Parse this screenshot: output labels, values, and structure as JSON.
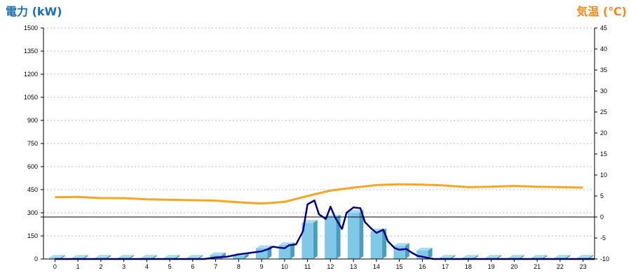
{
  "chart_data": {
    "type": "bar",
    "title": "",
    "y_left": {
      "label": "電力 (kW)",
      "min": 0,
      "max": 1500,
      "ticks": [
        0,
        150,
        300,
        450,
        600,
        750,
        900,
        1050,
        1200,
        1350,
        1500
      ]
    },
    "y_right": {
      "label": "気温 (℃)",
      "min": -10,
      "max": 45,
      "ticks": [
        -10,
        -5,
        0,
        5,
        10,
        15,
        20,
        25,
        30,
        35,
        40,
        45
      ]
    },
    "x": [
      0,
      1,
      2,
      3,
      4,
      5,
      6,
      7,
      8,
      9,
      10,
      11,
      12,
      13,
      14,
      15,
      16,
      17,
      18,
      19,
      20,
      21,
      22,
      23
    ],
    "grid": true,
    "colors": {
      "bars": "#7fc8e8",
      "bars_side": "#4a9cc0",
      "power_line": "#000080",
      "temp_line": "#f5a623",
      "left_title": "#1b6fb5",
      "right_title": "#f08a1c",
      "grid": "#aaaaaa"
    },
    "series": [
      {
        "kind": "bar",
        "axis": "left",
        "values": [
          8,
          8,
          8,
          8,
          8,
          8,
          8,
          25,
          20,
          70,
          90,
          235,
          270,
          300,
          180,
          85,
          55,
          8,
          8,
          8,
          8,
          8,
          8,
          8
        ]
      },
      {
        "kind": "line",
        "axis": "left",
        "points": [
          [
            0,
            0
          ],
          [
            6.5,
            0
          ],
          [
            7,
            10
          ],
          [
            7.5,
            15
          ],
          [
            8,
            30
          ],
          [
            8.5,
            40
          ],
          [
            9,
            50
          ],
          [
            9.3,
            65
          ],
          [
            9.5,
            80
          ],
          [
            9.7,
            75
          ],
          [
            10,
            70
          ],
          [
            10.2,
            90
          ],
          [
            10.5,
            95
          ],
          [
            10.8,
            180
          ],
          [
            11,
            355
          ],
          [
            11.3,
            380
          ],
          [
            11.5,
            290
          ],
          [
            11.8,
            260
          ],
          [
            12,
            340
          ],
          [
            12.2,
            270
          ],
          [
            12.5,
            195
          ],
          [
            12.7,
            300
          ],
          [
            13,
            335
          ],
          [
            13.3,
            330
          ],
          [
            13.5,
            240
          ],
          [
            13.8,
            195
          ],
          [
            14,
            170
          ],
          [
            14.3,
            190
          ],
          [
            14.5,
            115
          ],
          [
            14.8,
            70
          ],
          [
            15,
            60
          ],
          [
            15.3,
            65
          ],
          [
            15.5,
            45
          ],
          [
            15.8,
            20
          ],
          [
            16,
            15
          ],
          [
            16.3,
            5
          ],
          [
            16.5,
            0
          ],
          [
            23.5,
            0
          ]
        ]
      },
      {
        "kind": "line",
        "axis": "right",
        "points": [
          [
            0,
            4.7
          ],
          [
            1,
            4.8
          ],
          [
            2,
            4.5
          ],
          [
            3,
            4.5
          ],
          [
            4,
            4.2
          ],
          [
            5,
            4.1
          ],
          [
            6,
            4
          ],
          [
            7,
            3.9
          ],
          [
            8,
            3.5
          ],
          [
            9,
            3.2
          ],
          [
            10,
            3.6
          ],
          [
            11,
            5
          ],
          [
            12,
            6.3
          ],
          [
            13,
            7
          ],
          [
            14,
            7.6
          ],
          [
            15,
            7.8
          ],
          [
            16,
            7.7
          ],
          [
            17,
            7.5
          ],
          [
            18,
            7.1
          ],
          [
            19,
            7.2
          ],
          [
            20,
            7.4
          ],
          [
            21,
            7.2
          ],
          [
            22,
            7.1
          ],
          [
            23,
            7
          ]
        ]
      }
    ]
  }
}
